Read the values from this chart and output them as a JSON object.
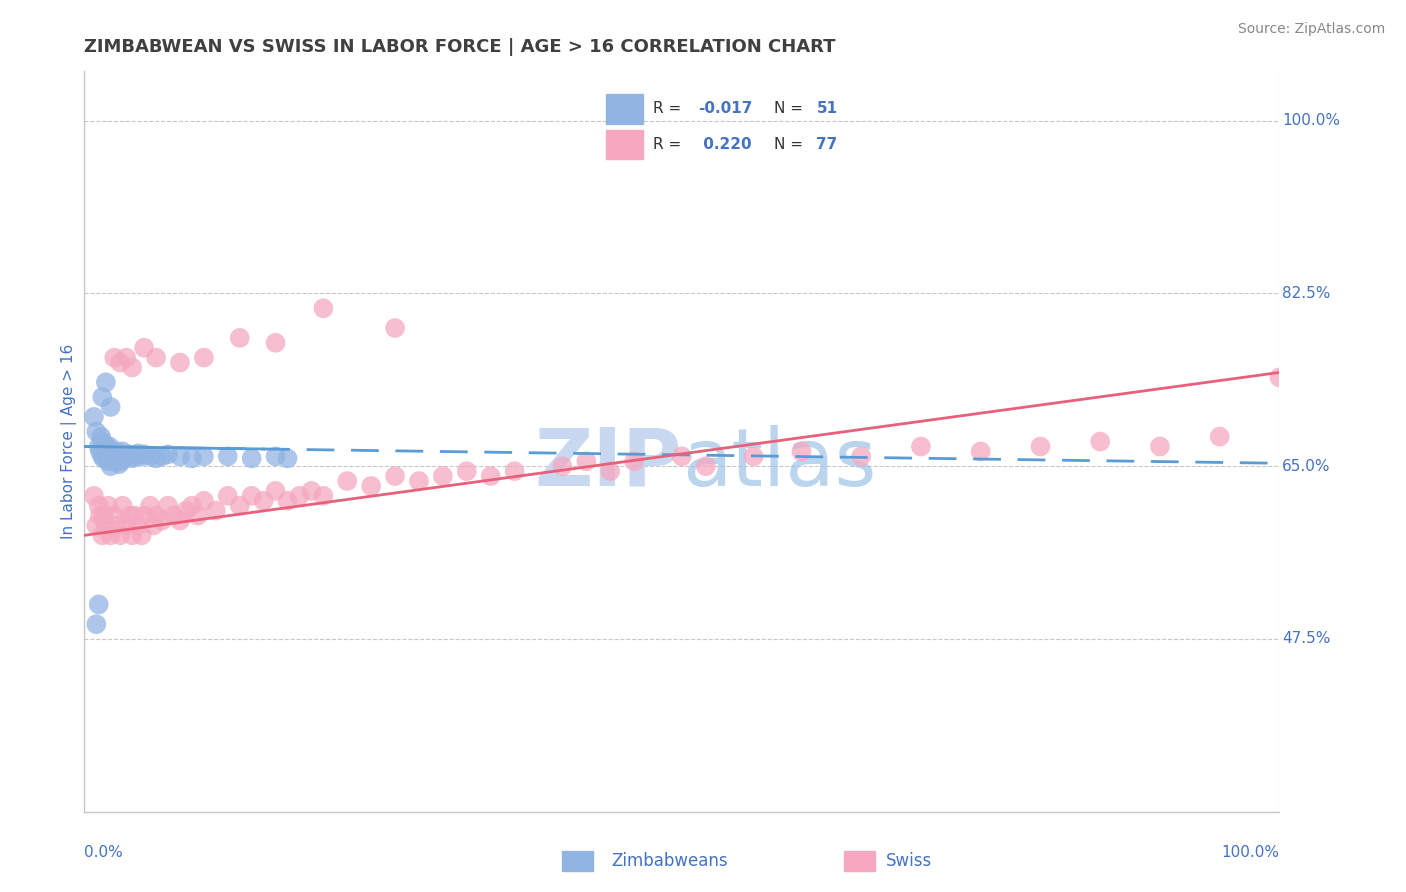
{
  "title": "ZIMBABWEAN VS SWISS IN LABOR FORCE | AGE > 16 CORRELATION CHART",
  "source": "Source: ZipAtlas.com",
  "ylabel": "In Labor Force | Age > 16",
  "xlim": [
    0.0,
    1.0
  ],
  "ylim": [
    0.3,
    1.05
  ],
  "yticks": [
    0.475,
    0.65,
    0.825,
    1.0
  ],
  "ytick_labels": [
    "47.5%",
    "65.0%",
    "82.5%",
    "100.0%"
  ],
  "xtick_labels": [
    "0.0%",
    "100.0%"
  ],
  "xticks": [
    0.0,
    1.0
  ],
  "legend_r1": "R = -0.017",
  "legend_n1": "N = 51",
  "legend_r2": "R =  0.220",
  "legend_n2": "N = 77",
  "blue_color": "#92b4e3",
  "pink_color": "#f5a8bf",
  "trend_blue_color": "#5b9bd5",
  "trend_pink_color": "#e8607a",
  "axis_color": "#4472c4",
  "title_color": "#404040",
  "watermark_color": "#c8d8f0",
  "grid_color": "#c8c8c8",
  "blue_trend_y": [
    0.67,
    0.653
  ],
  "pink_trend_y": [
    0.58,
    0.745
  ],
  "blue_x": [
    0.008,
    0.01,
    0.012,
    0.013,
    0.014,
    0.015,
    0.015,
    0.016,
    0.017,
    0.018,
    0.019,
    0.02,
    0.02,
    0.021,
    0.022,
    0.022,
    0.023,
    0.024,
    0.025,
    0.025,
    0.026,
    0.027,
    0.028,
    0.029,
    0.03,
    0.031,
    0.032,
    0.033,
    0.035,
    0.037,
    0.04,
    0.042,
    0.045,
    0.048,
    0.05,
    0.055,
    0.06,
    0.065,
    0.07,
    0.08,
    0.09,
    0.1,
    0.12,
    0.14,
    0.16,
    0.17,
    0.015,
    0.018,
    0.022,
    0.01,
    0.012
  ],
  "blue_y": [
    0.7,
    0.685,
    0.67,
    0.665,
    0.68,
    0.66,
    0.675,
    0.658,
    0.672,
    0.665,
    0.66,
    0.668,
    0.655,
    0.67,
    0.66,
    0.65,
    0.665,
    0.658,
    0.662,
    0.655,
    0.66,
    0.665,
    0.658,
    0.652,
    0.66,
    0.655,
    0.665,
    0.658,
    0.66,
    0.662,
    0.658,
    0.66,
    0.663,
    0.66,
    0.662,
    0.66,
    0.658,
    0.66,
    0.662,
    0.66,
    0.658,
    0.66,
    0.66,
    0.658,
    0.66,
    0.658,
    0.72,
    0.735,
    0.71,
    0.49,
    0.51
  ],
  "pink_x": [
    0.008,
    0.01,
    0.012,
    0.013,
    0.015,
    0.016,
    0.018,
    0.02,
    0.022,
    0.025,
    0.027,
    0.03,
    0.032,
    0.035,
    0.038,
    0.04,
    0.042,
    0.045,
    0.048,
    0.05,
    0.055,
    0.058,
    0.06,
    0.065,
    0.07,
    0.075,
    0.08,
    0.085,
    0.09,
    0.095,
    0.1,
    0.11,
    0.12,
    0.13,
    0.14,
    0.15,
    0.16,
    0.17,
    0.18,
    0.19,
    0.2,
    0.22,
    0.24,
    0.26,
    0.28,
    0.3,
    0.32,
    0.34,
    0.36,
    0.4,
    0.42,
    0.44,
    0.46,
    0.5,
    0.52,
    0.56,
    0.6,
    0.65,
    0.7,
    0.75,
    0.8,
    0.85,
    0.9,
    0.95,
    1.0,
    0.025,
    0.03,
    0.035,
    0.04,
    0.05,
    0.06,
    0.08,
    0.1,
    0.13,
    0.16,
    0.2,
    0.26
  ],
  "pink_y": [
    0.62,
    0.59,
    0.61,
    0.6,
    0.58,
    0.6,
    0.59,
    0.61,
    0.58,
    0.6,
    0.59,
    0.58,
    0.61,
    0.59,
    0.6,
    0.58,
    0.6,
    0.59,
    0.58,
    0.6,
    0.61,
    0.59,
    0.6,
    0.595,
    0.61,
    0.6,
    0.595,
    0.605,
    0.61,
    0.6,
    0.615,
    0.605,
    0.62,
    0.61,
    0.62,
    0.615,
    0.625,
    0.615,
    0.62,
    0.625,
    0.62,
    0.635,
    0.63,
    0.64,
    0.635,
    0.64,
    0.645,
    0.64,
    0.645,
    0.65,
    0.655,
    0.645,
    0.655,
    0.66,
    0.65,
    0.66,
    0.665,
    0.66,
    0.67,
    0.665,
    0.67,
    0.675,
    0.67,
    0.68,
    0.74,
    0.76,
    0.755,
    0.76,
    0.75,
    0.77,
    0.76,
    0.755,
    0.76,
    0.78,
    0.775,
    0.81,
    0.79
  ]
}
